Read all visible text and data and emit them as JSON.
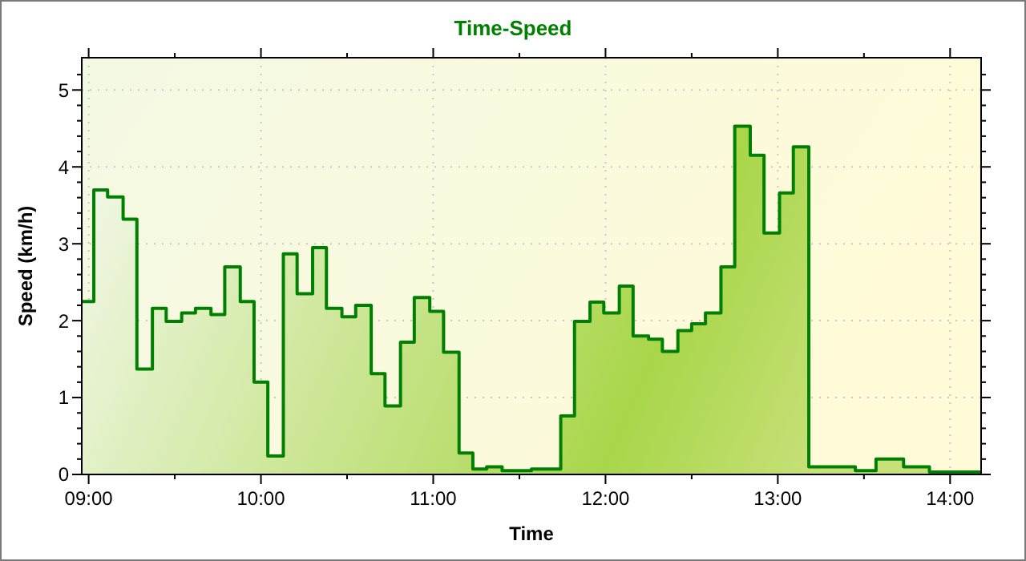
{
  "chart_data": {
    "type": "area",
    "title": "Time-Speed",
    "xlabel": "Time",
    "ylabel": "Speed (km/h)",
    "x": [
      8.96,
      9.03,
      9.03,
      9.11,
      9.11,
      9.2,
      9.2,
      9.28,
      9.28,
      9.37,
      9.37,
      9.45,
      9.45,
      9.54,
      9.54,
      9.62,
      9.62,
      9.71,
      9.71,
      9.79,
      9.79,
      9.88,
      9.88,
      9.96,
      9.96,
      10.04,
      10.04,
      10.13,
      10.13,
      10.21,
      10.21,
      10.3,
      10.3,
      10.38,
      10.38,
      10.47,
      10.47,
      10.55,
      10.55,
      10.64,
      10.64,
      10.72,
      10.72,
      10.81,
      10.81,
      10.89,
      10.89,
      10.98,
      10.98,
      11.06,
      11.06,
      11.15,
      11.15,
      11.23,
      11.23,
      11.31,
      11.31,
      11.4,
      11.4,
      11.48,
      11.48,
      11.57,
      11.57,
      11.65,
      11.65,
      11.74,
      11.74,
      11.82,
      11.82,
      11.91,
      11.91,
      11.99,
      11.99,
      12.08,
      12.08,
      12.16,
      12.16,
      12.25,
      12.25,
      12.33,
      12.33,
      12.42,
      12.42,
      12.5,
      12.5,
      12.58,
      12.58,
      12.67,
      12.67,
      12.75,
      12.75,
      12.84,
      12.84,
      12.92,
      12.92,
      13.01,
      13.01,
      13.09,
      13.09,
      13.18,
      13.18,
      13.45,
      13.45,
      13.57,
      13.57,
      13.73,
      13.73,
      13.88,
      13.88,
      14.18
    ],
    "series": [
      {
        "color": "#008000",
        "values": [
          2.25,
          2.25,
          3.7,
          3.7,
          3.61,
          3.61,
          3.32,
          3.32,
          1.37,
          1.37,
          2.16,
          2.16,
          1.99,
          1.99,
          2.1,
          2.1,
          2.16,
          2.16,
          2.08,
          2.08,
          2.7,
          2.7,
          2.25,
          2.25,
          1.2,
          1.2,
          0.24,
          0.24,
          2.87,
          2.87,
          2.35,
          2.35,
          2.95,
          2.95,
          2.16,
          2.16,
          2.05,
          2.05,
          2.2,
          2.2,
          1.31,
          1.31,
          0.89,
          0.89,
          1.72,
          1.72,
          2.3,
          2.3,
          2.12,
          2.12,
          1.59,
          1.59,
          0.28,
          0.28,
          0.07,
          0.07,
          0.1,
          0.1,
          0.05,
          0.05,
          0.05,
          0.05,
          0.07,
          0.07,
          0.07,
          0.07,
          0.76,
          0.76,
          1.99,
          1.99,
          2.24,
          2.24,
          2.1,
          2.1,
          2.45,
          2.45,
          1.8,
          1.8,
          1.76,
          1.76,
          1.6,
          1.6,
          1.87,
          1.87,
          1.96,
          1.96,
          2.1,
          2.1,
          2.7,
          2.7,
          4.53,
          4.53,
          4.15,
          4.15,
          3.14,
          3.14,
          3.66,
          3.66,
          4.26,
          4.26,
          0.1,
          0.1,
          0.05,
          0.05,
          0.2,
          0.2,
          0.1,
          0.1,
          0.03,
          0.03
        ]
      }
    ],
    "xlim": [
      8.96,
      14.18
    ],
    "xticks": [
      {
        "value": 9,
        "label": "09:00"
      },
      {
        "value": 9.5,
        "label": null
      },
      {
        "value": 10,
        "label": "10:00"
      },
      {
        "value": 10.5,
        "label": null
      },
      {
        "value": 11,
        "label": "11:00"
      },
      {
        "value": 11.5,
        "label": null
      },
      {
        "value": 12,
        "label": "12:00"
      },
      {
        "value": 12.5,
        "label": null
      },
      {
        "value": 13,
        "label": "13:00"
      },
      {
        "value": 13.5,
        "label": null
      },
      {
        "value": 14,
        "label": "14:00"
      }
    ],
    "ylim": [
      0,
      5.42
    ],
    "yticks": [
      0,
      {
        "value": 0.2,
        "label": null
      },
      {
        "value": 0.4,
        "label": null
      },
      {
        "value": 0.6,
        "label": null
      },
      {
        "value": 0.8,
        "label": null
      },
      1,
      {
        "value": 1.2,
        "label": null
      },
      {
        "value": 1.4,
        "label": null
      },
      {
        "value": 1.6,
        "label": null
      },
      {
        "value": 1.8,
        "label": null
      },
      2,
      {
        "value": 2.2,
        "label": null
      },
      {
        "value": 2.4,
        "label": null
      },
      {
        "value": 2.6,
        "label": null
      },
      {
        "value": 2.8,
        "label": null
      },
      3,
      {
        "value": 3.2,
        "label": null
      },
      {
        "value": 3.4,
        "label": null
      },
      {
        "value": 3.6,
        "label": null
      },
      {
        "value": 3.8,
        "label": null
      },
      4,
      {
        "value": 4.2,
        "label": null
      },
      {
        "value": 4.4,
        "label": null
      },
      {
        "value": 4.6,
        "label": null
      },
      {
        "value": 4.8,
        "label": null
      },
      5,
      {
        "value": 5.2,
        "label": null
      }
    ],
    "grid": true,
    "line_style": "solid",
    "marker": "none"
  }
}
